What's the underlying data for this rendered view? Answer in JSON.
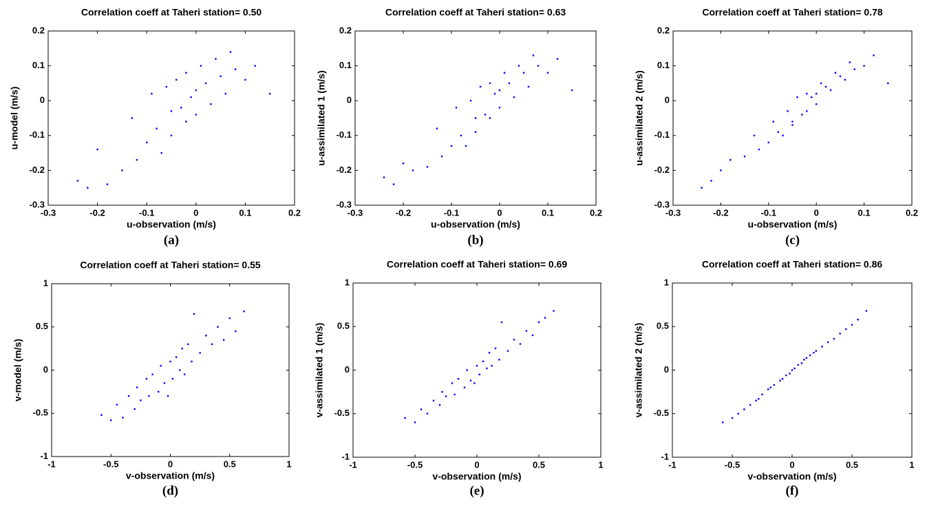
{
  "chart_data": [
    {
      "type": "scatter",
      "title": "Correlation coeff at Taheri station= 0.50",
      "xlabel": "u-observation (m/s)",
      "ylabel": "u-model (m/s)",
      "caption": "(a)",
      "color": "#0000ff",
      "xlim": [
        -0.3,
        0.2
      ],
      "ylim": [
        -0.3,
        0.2
      ],
      "xticks": [
        -0.3,
        -0.2,
        -0.1,
        0,
        0.1,
        0.2
      ],
      "yticks": [
        -0.3,
        -0.2,
        -0.1,
        0,
        0.1,
        0.2
      ],
      "x": [
        -0.24,
        -0.22,
        -0.2,
        -0.18,
        -0.15,
        -0.13,
        -0.12,
        -0.1,
        -0.09,
        -0.08,
        -0.07,
        -0.06,
        -0.05,
        -0.05,
        -0.04,
        -0.03,
        -0.02,
        -0.02,
        -0.01,
        0,
        0,
        0.01,
        0.02,
        0.03,
        0.04,
        0.05,
        0.06,
        0.07,
        0.08,
        0.1,
        0.12,
        0.15
      ],
      "y": [
        -0.23,
        -0.25,
        -0.14,
        -0.24,
        -0.2,
        -0.05,
        -0.17,
        -0.12,
        0.02,
        -0.08,
        -0.15,
        0.04,
        -0.03,
        -0.1,
        0.06,
        -0.02,
        0.08,
        -0.06,
        0.01,
        0.03,
        -0.04,
        0.1,
        0.05,
        -0.01,
        0.12,
        0.07,
        0.02,
        0.14,
        0.09,
        0.06,
        0.1,
        0.02
      ]
    },
    {
      "type": "scatter",
      "title": "Correlation coeff at Taheri station= 0.63",
      "xlabel": "u-observation (m/s)",
      "ylabel": "u-assimilated 1 (m/s)",
      "caption": "(b)",
      "color": "#0000ff",
      "xlim": [
        -0.3,
        0.2
      ],
      "ylim": [
        -0.3,
        0.2
      ],
      "xticks": [
        -0.3,
        -0.2,
        -0.1,
        0,
        0.1,
        0.2
      ],
      "yticks": [
        -0.3,
        -0.2,
        -0.1,
        0,
        0.1,
        0.2
      ],
      "x": [
        -0.24,
        -0.22,
        -0.2,
        -0.18,
        -0.15,
        -0.13,
        -0.12,
        -0.1,
        -0.09,
        -0.08,
        -0.07,
        -0.06,
        -0.05,
        -0.05,
        -0.04,
        -0.03,
        -0.02,
        -0.02,
        -0.01,
        0,
        0,
        0.01,
        0.02,
        0.03,
        0.04,
        0.05,
        0.06,
        0.07,
        0.08,
        0.1,
        0.12,
        0.15
      ],
      "y": [
        -0.22,
        -0.24,
        -0.18,
        -0.2,
        -0.19,
        -0.08,
        -0.16,
        -0.13,
        -0.02,
        -0.1,
        -0.13,
        0,
        -0.05,
        -0.09,
        0.04,
        -0.04,
        0.05,
        -0.05,
        0.02,
        0.03,
        -0.02,
        0.08,
        0.05,
        0.01,
        0.1,
        0.08,
        0.04,
        0.13,
        0.1,
        0.08,
        0.12,
        0.03
      ]
    },
    {
      "type": "scatter",
      "title": "Correlation coeff at Taheri station= 0.78",
      "xlabel": "u-observation (m/s)",
      "ylabel": "u-assimilated 2 (m/s)",
      "caption": "(c)",
      "color": "#0000ff",
      "xlim": [
        -0.3,
        0.2
      ],
      "ylim": [
        -0.3,
        0.2
      ],
      "xticks": [
        -0.3,
        -0.2,
        -0.1,
        0,
        0.1,
        0.2
      ],
      "yticks": [
        -0.3,
        -0.2,
        -0.1,
        0,
        0.1,
        0.2
      ],
      "x": [
        -0.24,
        -0.22,
        -0.2,
        -0.18,
        -0.15,
        -0.13,
        -0.12,
        -0.1,
        -0.09,
        -0.08,
        -0.07,
        -0.06,
        -0.05,
        -0.05,
        -0.04,
        -0.03,
        -0.02,
        -0.02,
        -0.01,
        0,
        0,
        0.01,
        0.02,
        0.03,
        0.04,
        0.05,
        0.06,
        0.07,
        0.08,
        0.1,
        0.12,
        0.15
      ],
      "y": [
        -0.25,
        -0.23,
        -0.2,
        -0.17,
        -0.16,
        -0.1,
        -0.14,
        -0.12,
        -0.06,
        -0.09,
        -0.1,
        -0.03,
        -0.06,
        -0.07,
        0.01,
        -0.04,
        0.02,
        -0.03,
        0.01,
        0.02,
        -0.01,
        0.05,
        0.04,
        0.03,
        0.08,
        0.07,
        0.06,
        0.11,
        0.09,
        0.1,
        0.13,
        0.05
      ]
    },
    {
      "type": "scatter",
      "title": "Correlation coeff at Taheri station= 0.55",
      "xlabel": "v-observation (m/s)",
      "ylabel": "v-model (m/s)",
      "caption": "(d)",
      "color": "#0000ff",
      "xlim": [
        -1,
        1
      ],
      "ylim": [
        -1,
        1
      ],
      "xticks": [
        -1,
        -0.5,
        0,
        0.5,
        1
      ],
      "yticks": [
        -1,
        -0.5,
        0,
        0.5,
        1
      ],
      "x": [
        -0.58,
        -0.5,
        -0.45,
        -0.4,
        -0.35,
        -0.3,
        -0.28,
        -0.25,
        -0.2,
        -0.18,
        -0.15,
        -0.1,
        -0.08,
        -0.05,
        -0.02,
        0,
        0.02,
        0.05,
        0.08,
        0.1,
        0.12,
        0.15,
        0.18,
        0.2,
        0.25,
        0.3,
        0.35,
        0.4,
        0.45,
        0.5,
        0.55,
        0.62
      ],
      "y": [
        -0.52,
        -0.58,
        -0.4,
        -0.55,
        -0.3,
        -0.45,
        -0.2,
        -0.35,
        -0.1,
        -0.3,
        -0.05,
        -0.25,
        0.05,
        -0.15,
        -0.3,
        0.1,
        -0.1,
        0.15,
        0,
        0.25,
        -0.05,
        0.3,
        0.1,
        0.65,
        0.2,
        0.4,
        0.3,
        0.5,
        0.35,
        0.6,
        0.45,
        0.68
      ]
    },
    {
      "type": "scatter",
      "title": "Correlation coeff at Taheri station= 0.69",
      "xlabel": "v-observation (m/s)",
      "ylabel": "v-assimilated 1 (m/s)",
      "caption": "(e)",
      "color": "#0000ff",
      "xlim": [
        -1,
        1
      ],
      "ylim": [
        -1,
        1
      ],
      "xticks": [
        -1,
        -0.5,
        0,
        0.5,
        1
      ],
      "yticks": [
        -1,
        -0.5,
        0,
        0.5,
        1
      ],
      "x": [
        -0.58,
        -0.5,
        -0.45,
        -0.4,
        -0.35,
        -0.3,
        -0.28,
        -0.25,
        -0.2,
        -0.18,
        -0.15,
        -0.1,
        -0.08,
        -0.05,
        -0.02,
        0,
        0.02,
        0.05,
        0.08,
        0.1,
        0.12,
        0.15,
        0.18,
        0.2,
        0.25,
        0.3,
        0.35,
        0.4,
        0.45,
        0.5,
        0.55,
        0.62
      ],
      "y": [
        -0.55,
        -0.6,
        -0.45,
        -0.5,
        -0.35,
        -0.4,
        -0.25,
        -0.3,
        -0.15,
        -0.28,
        -0.1,
        -0.2,
        0,
        -0.12,
        -0.15,
        0.05,
        -0.05,
        0.1,
        0.02,
        0.2,
        0.05,
        0.25,
        0.12,
        0.55,
        0.22,
        0.35,
        0.3,
        0.45,
        0.4,
        0.55,
        0.6,
        0.68
      ]
    },
    {
      "type": "scatter",
      "title": "Correlation coeff at Taheri station= 0.86",
      "xlabel": "v-observation (m/s)",
      "ylabel": "v-assimilated 2 (m/s)",
      "caption": "(f)",
      "color": "#0000ff",
      "xlim": [
        -1,
        1
      ],
      "ylim": [
        -1,
        1
      ],
      "xticks": [
        -1,
        -0.5,
        0,
        0.5,
        1
      ],
      "yticks": [
        -1,
        -0.5,
        0,
        0.5,
        1
      ],
      "x": [
        -0.58,
        -0.5,
        -0.45,
        -0.4,
        -0.35,
        -0.3,
        -0.28,
        -0.25,
        -0.2,
        -0.18,
        -0.15,
        -0.1,
        -0.08,
        -0.05,
        -0.02,
        0,
        0.02,
        0.05,
        0.08,
        0.1,
        0.12,
        0.15,
        0.18,
        0.2,
        0.25,
        0.3,
        0.35,
        0.4,
        0.45,
        0.5,
        0.55,
        0.62
      ],
      "y": [
        -0.6,
        -0.55,
        -0.5,
        -0.45,
        -0.4,
        -0.35,
        -0.33,
        -0.28,
        -0.22,
        -0.2,
        -0.17,
        -0.12,
        -0.1,
        -0.06,
        -0.04,
        0,
        0.02,
        0.06,
        0.08,
        0.12,
        0.14,
        0.17,
        0.2,
        0.22,
        0.27,
        0.32,
        0.36,
        0.42,
        0.47,
        0.52,
        0.58,
        0.68
      ]
    }
  ]
}
